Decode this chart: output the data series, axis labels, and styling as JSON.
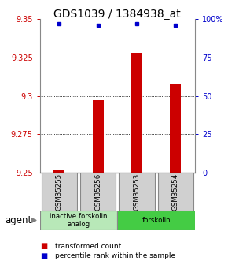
{
  "title": "GDS1039 / 1384938_at",
  "samples": [
    "GSM35255",
    "GSM35256",
    "GSM35253",
    "GSM35254"
  ],
  "bar_values": [
    9.252,
    9.297,
    9.328,
    9.308
  ],
  "bar_base": 9.25,
  "percentile_values": [
    9.347,
    9.346,
    9.347,
    9.346
  ],
  "ylim": [
    9.25,
    9.35
  ],
  "yticks_left": [
    9.25,
    9.275,
    9.3,
    9.325,
    9.35
  ],
  "yticks_right": [
    0,
    25,
    50,
    75,
    100
  ],
  "groups": [
    {
      "label": "inactive forskolin\nanalog",
      "color": "#b8e8b8",
      "start": 0,
      "end": 2
    },
    {
      "label": "forskolin",
      "color": "#44cc44",
      "start": 2,
      "end": 4
    }
  ],
  "bar_color": "#cc0000",
  "percentile_color": "#0000cc",
  "sample_box_color": "#d0d0d0",
  "sample_box_edgecolor": "#888888",
  "background_color": "#ffffff",
  "title_fontsize": 10,
  "agent_label": "agent",
  "legend_items": [
    {
      "color": "#cc0000",
      "label": "transformed count"
    },
    {
      "color": "#0000cc",
      "label": "percentile rank within the sample"
    }
  ]
}
